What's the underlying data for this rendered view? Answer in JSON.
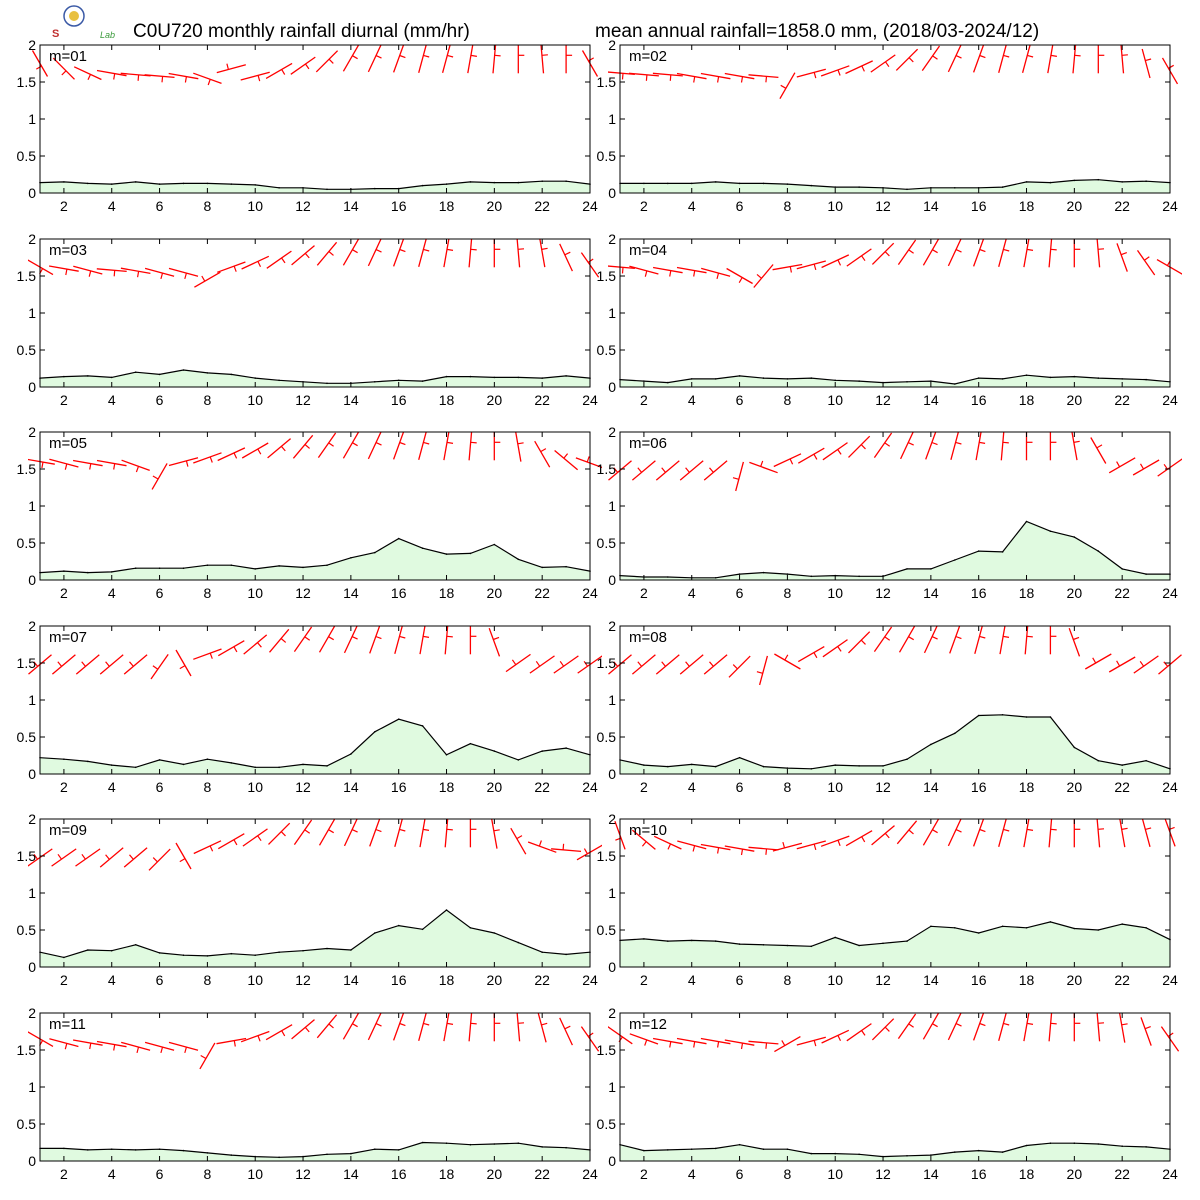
{
  "figure": {
    "title_left": "C0U720 monthly rainfall diurnal (mm/hr)",
    "title_right": "mean annual rainfall=1858.0 mm, (2018/03-2024/12)",
    "logo_text": "Lab"
  },
  "chart_data": {
    "type": "area",
    "xlim": [
      1,
      24
    ],
    "ylim": [
      0,
      2
    ],
    "xticks": [
      2,
      4,
      6,
      8,
      10,
      12,
      14,
      16,
      18,
      20,
      22,
      24
    ],
    "yticks": [
      0,
      0.5,
      1,
      1.5,
      2
    ],
    "ytick_labels": [
      "0",
      "0.5",
      "1",
      "1.5",
      "2"
    ],
    "x": [
      1,
      2,
      3,
      4,
      5,
      6,
      7,
      8,
      9,
      10,
      11,
      12,
      13,
      14,
      15,
      16,
      17,
      18,
      19,
      20,
      21,
      22,
      23,
      24
    ],
    "fill_color": "#e0fae0",
    "line_color": "#000000",
    "wind_color": "#ff0000",
    "grid": false,
    "panels": [
      {
        "label": "m=01",
        "values": [
          0.14,
          0.15,
          0.13,
          0.12,
          0.15,
          0.12,
          0.13,
          0.13,
          0.12,
          0.11,
          0.07,
          0.07,
          0.05,
          0.05,
          0.06,
          0.06,
          0.1,
          0.12,
          0.15,
          0.14,
          0.14,
          0.16,
          0.16,
          0.12
        ],
        "wind_dir": [
          150,
          135,
          115,
          100,
          95,
          95,
          100,
          110,
          255,
          75,
          60,
          55,
          45,
          30,
          25,
          20,
          15,
          15,
          10,
          5,
          0,
          355,
          0,
          330
        ],
        "wind_y": [
          1.75,
          1.68,
          1.62,
          1.62,
          1.6,
          1.58,
          1.58,
          1.55,
          1.68,
          1.58,
          1.65,
          1.72,
          1.78,
          1.82,
          1.82,
          1.82,
          1.82,
          1.82,
          1.82,
          1.82,
          1.82,
          1.82,
          1.82,
          1.75
        ]
      },
      {
        "label": "m=02",
        "values": [
          0.13,
          0.13,
          0.13,
          0.13,
          0.15,
          0.13,
          0.13,
          0.12,
          0.1,
          0.08,
          0.08,
          0.07,
          0.05,
          0.07,
          0.07,
          0.07,
          0.08,
          0.15,
          0.14,
          0.17,
          0.18,
          0.15,
          0.16,
          0.14
        ],
        "wind_dir": [
          95,
          95,
          95,
          100,
          100,
          100,
          95,
          210,
          75,
          70,
          65,
          55,
          45,
          35,
          25,
          20,
          15,
          15,
          10,
          5,
          0,
          355,
          345,
          330
        ],
        "wind_y": [
          1.62,
          1.6,
          1.6,
          1.58,
          1.58,
          1.58,
          1.58,
          1.45,
          1.62,
          1.65,
          1.7,
          1.75,
          1.8,
          1.82,
          1.82,
          1.82,
          1.82,
          1.82,
          1.82,
          1.82,
          1.82,
          1.82,
          1.75,
          1.65
        ]
      },
      {
        "label": "m=03",
        "values": [
          0.12,
          0.14,
          0.15,
          0.13,
          0.2,
          0.17,
          0.23,
          0.19,
          0.17,
          0.12,
          0.09,
          0.07,
          0.05,
          0.05,
          0.07,
          0.09,
          0.08,
          0.14,
          0.14,
          0.13,
          0.13,
          0.12,
          0.15,
          0.12
        ],
        "wind_dir": [
          120,
          100,
          105,
          95,
          100,
          105,
          105,
          240,
          70,
          65,
          55,
          50,
          40,
          30,
          25,
          20,
          15,
          10,
          5,
          0,
          355,
          350,
          335,
          325
        ],
        "wind_y": [
          1.62,
          1.6,
          1.58,
          1.58,
          1.57,
          1.55,
          1.55,
          1.45,
          1.62,
          1.68,
          1.72,
          1.78,
          1.8,
          1.82,
          1.82,
          1.82,
          1.82,
          1.82,
          1.82,
          1.82,
          1.82,
          1.82,
          1.75,
          1.65
        ]
      },
      {
        "label": "m=04",
        "values": [
          0.1,
          0.08,
          0.06,
          0.11,
          0.11,
          0.15,
          0.12,
          0.11,
          0.12,
          0.09,
          0.08,
          0.06,
          0.07,
          0.08,
          0.04,
          0.12,
          0.11,
          0.16,
          0.13,
          0.14,
          0.12,
          0.11,
          0.1,
          0.07
        ],
        "wind_dir": [
          95,
          105,
          100,
          100,
          105,
          120,
          220,
          80,
          75,
          65,
          55,
          45,
          35,
          30,
          25,
          20,
          15,
          10,
          5,
          0,
          355,
          340,
          325,
          300
        ],
        "wind_y": [
          1.62,
          1.58,
          1.58,
          1.58,
          1.55,
          1.5,
          1.5,
          1.62,
          1.65,
          1.7,
          1.75,
          1.8,
          1.82,
          1.82,
          1.82,
          1.82,
          1.82,
          1.82,
          1.82,
          1.82,
          1.82,
          1.75,
          1.68,
          1.62
        ]
      },
      {
        "label": "m=05",
        "values": [
          0.1,
          0.12,
          0.1,
          0.11,
          0.16,
          0.16,
          0.16,
          0.2,
          0.2,
          0.15,
          0.19,
          0.17,
          0.2,
          0.3,
          0.37,
          0.56,
          0.43,
          0.35,
          0.36,
          0.48,
          0.28,
          0.17,
          0.18,
          0.12
        ],
        "wind_dir": [
          100,
          105,
          100,
          100,
          110,
          210,
          75,
          70,
          65,
          60,
          50,
          40,
          35,
          30,
          25,
          20,
          15,
          10,
          5,
          0,
          350,
          330,
          310,
          290
        ],
        "wind_y": [
          1.6,
          1.58,
          1.58,
          1.58,
          1.55,
          1.4,
          1.6,
          1.65,
          1.7,
          1.75,
          1.78,
          1.8,
          1.82,
          1.82,
          1.82,
          1.82,
          1.82,
          1.82,
          1.82,
          1.82,
          1.8,
          1.7,
          1.62,
          1.58
        ]
      },
      {
        "label": "m=06",
        "values": [
          0.06,
          0.04,
          0.04,
          0.03,
          0.03,
          0.08,
          0.1,
          0.08,
          0.05,
          0.06,
          0.05,
          0.05,
          0.15,
          0.15,
          0.27,
          0.39,
          0.38,
          0.79,
          0.66,
          0.58,
          0.39,
          0.15,
          0.08,
          0.08
        ],
        "wind_dir": [
          230,
          230,
          230,
          230,
          230,
          195,
          290,
          65,
          60,
          55,
          45,
          35,
          25,
          20,
          15,
          10,
          5,
          0,
          0,
          350,
          330,
          240,
          240,
          235
        ],
        "wind_y": [
          1.48,
          1.48,
          1.48,
          1.48,
          1.48,
          1.4,
          1.52,
          1.62,
          1.68,
          1.74,
          1.8,
          1.82,
          1.82,
          1.82,
          1.82,
          1.82,
          1.82,
          1.82,
          1.82,
          1.82,
          1.75,
          1.55,
          1.52,
          1.52
        ]
      },
      {
        "label": "m=07",
        "values": [
          0.22,
          0.2,
          0.17,
          0.12,
          0.09,
          0.19,
          0.13,
          0.2,
          0.15,
          0.09,
          0.09,
          0.13,
          0.11,
          0.27,
          0.57,
          0.74,
          0.65,
          0.26,
          0.41,
          0.31,
          0.19,
          0.31,
          0.35,
          0.26
        ],
        "wind_dir": [
          230,
          230,
          230,
          230,
          230,
          215,
          150,
          70,
          60,
          50,
          40,
          35,
          30,
          25,
          20,
          15,
          10,
          5,
          0,
          340,
          235,
          235,
          235,
          235
        ],
        "wind_y": [
          1.48,
          1.48,
          1.48,
          1.48,
          1.48,
          1.45,
          1.5,
          1.62,
          1.7,
          1.75,
          1.8,
          1.82,
          1.82,
          1.82,
          1.82,
          1.82,
          1.82,
          1.82,
          1.82,
          1.78,
          1.5,
          1.48,
          1.48,
          1.48
        ]
      },
      {
        "label": "m=08",
        "values": [
          0.19,
          0.12,
          0.1,
          0.13,
          0.1,
          0.22,
          0.1,
          0.08,
          0.07,
          0.12,
          0.11,
          0.11,
          0.2,
          0.4,
          0.55,
          0.79,
          0.8,
          0.77,
          0.77,
          0.36,
          0.18,
          0.12,
          0.18,
          0.07
        ],
        "wind_dir": [
          230,
          230,
          230,
          230,
          230,
          225,
          195,
          300,
          60,
          55,
          45,
          35,
          30,
          25,
          20,
          15,
          10,
          5,
          0,
          340,
          240,
          240,
          235,
          230
        ],
        "wind_y": [
          1.48,
          1.48,
          1.48,
          1.48,
          1.48,
          1.45,
          1.4,
          1.52,
          1.62,
          1.7,
          1.78,
          1.82,
          1.82,
          1.82,
          1.82,
          1.82,
          1.82,
          1.82,
          1.82,
          1.78,
          1.52,
          1.48,
          1.48,
          1.48
        ]
      },
      {
        "label": "m=09",
        "values": [
          0.2,
          0.13,
          0.23,
          0.22,
          0.3,
          0.19,
          0.16,
          0.15,
          0.18,
          0.16,
          0.2,
          0.22,
          0.25,
          0.23,
          0.46,
          0.56,
          0.51,
          0.77,
          0.53,
          0.46,
          0.33,
          0.2,
          0.17,
          0.2
        ],
        "wind_dir": [
          235,
          235,
          235,
          230,
          230,
          225,
          150,
          65,
          60,
          55,
          45,
          35,
          30,
          25,
          20,
          15,
          10,
          5,
          0,
          350,
          330,
          290,
          275,
          240
        ],
        "wind_y": [
          1.48,
          1.48,
          1.48,
          1.48,
          1.48,
          1.45,
          1.5,
          1.62,
          1.7,
          1.75,
          1.8,
          1.82,
          1.82,
          1.82,
          1.82,
          1.82,
          1.82,
          1.82,
          1.82,
          1.8,
          1.7,
          1.62,
          1.58,
          1.55
        ]
      },
      {
        "label": "m=10",
        "values": [
          0.36,
          0.38,
          0.35,
          0.36,
          0.35,
          0.31,
          0.3,
          0.29,
          0.28,
          0.4,
          0.29,
          0.32,
          0.35,
          0.55,
          0.53,
          0.46,
          0.55,
          0.53,
          0.61,
          0.52,
          0.5,
          0.58,
          0.53,
          0.37
        ],
        "wind_dir": [
          160,
          130,
          115,
          105,
          100,
          100,
          95,
          255,
          75,
          70,
          60,
          50,
          40,
          30,
          25,
          20,
          15,
          10,
          5,
          0,
          355,
          350,
          345,
          340
        ],
        "wind_y": [
          1.78,
          1.72,
          1.68,
          1.65,
          1.62,
          1.6,
          1.6,
          1.62,
          1.65,
          1.7,
          1.74,
          1.78,
          1.82,
          1.82,
          1.82,
          1.82,
          1.82,
          1.82,
          1.82,
          1.82,
          1.82,
          1.82,
          1.82,
          1.82
        ]
      },
      {
        "label": "m=11",
        "values": [
          0.17,
          0.17,
          0.15,
          0.16,
          0.15,
          0.16,
          0.14,
          0.11,
          0.08,
          0.06,
          0.05,
          0.06,
          0.09,
          0.1,
          0.16,
          0.15,
          0.25,
          0.24,
          0.22,
          0.23,
          0.24,
          0.19,
          0.18,
          0.15
        ],
        "wind_dir": [
          120,
          105,
          100,
          100,
          105,
          105,
          105,
          210,
          80,
          70,
          60,
          50,
          40,
          30,
          25,
          20,
          15,
          10,
          5,
          0,
          355,
          345,
          335,
          325
        ],
        "wind_y": [
          1.65,
          1.6,
          1.6,
          1.58,
          1.55,
          1.55,
          1.55,
          1.42,
          1.62,
          1.68,
          1.74,
          1.78,
          1.82,
          1.82,
          1.82,
          1.82,
          1.82,
          1.82,
          1.82,
          1.82,
          1.82,
          1.8,
          1.75,
          1.65
        ]
      },
      {
        "label": "m=12",
        "values": [
          0.22,
          0.14,
          0.15,
          0.16,
          0.17,
          0.22,
          0.16,
          0.16,
          0.1,
          0.1,
          0.09,
          0.06,
          0.07,
          0.08,
          0.12,
          0.14,
          0.12,
          0.21,
          0.24,
          0.24,
          0.23,
          0.2,
          0.19,
          0.16
        ],
        "wind_dir": [
          125,
          110,
          100,
          100,
          100,
          100,
          95,
          240,
          75,
          65,
          55,
          45,
          35,
          30,
          25,
          20,
          15,
          10,
          5,
          0,
          355,
          350,
          340,
          325
        ],
        "wind_y": [
          1.7,
          1.65,
          1.62,
          1.62,
          1.62,
          1.6,
          1.6,
          1.58,
          1.62,
          1.68,
          1.74,
          1.78,
          1.82,
          1.82,
          1.82,
          1.82,
          1.82,
          1.82,
          1.82,
          1.82,
          1.82,
          1.8,
          1.75,
          1.65
        ]
      }
    ]
  }
}
